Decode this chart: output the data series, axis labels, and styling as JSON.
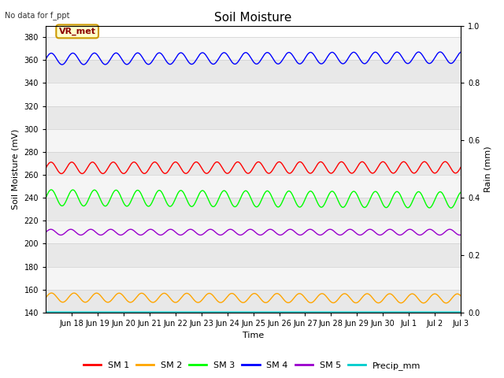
{
  "title": "Soil Moisture",
  "top_left_text": "No data for f_ppt",
  "ylabel_left": "Soil Moisture (mV)",
  "ylabel_right": "Rain (mm)",
  "xlabel": "Time",
  "annotation_text": "VR_met",
  "ylim_left": [
    140,
    390
  ],
  "ylim_right": [
    0.0,
    1.0
  ],
  "xtick_labels": [
    "Jun 18",
    "Jun 19",
    "Jun 20",
    "Jun 21",
    "Jun 22",
    "Jun 23",
    "Jun 24",
    "Jun 25",
    "Jun 26",
    "Jun 27",
    "Jun 28",
    "Jun 29",
    "Jun 30",
    "Jul 1",
    "Jul 2",
    "Jul 3"
  ],
  "ytick_labels_left": [
    140,
    160,
    180,
    200,
    220,
    240,
    260,
    280,
    300,
    320,
    340,
    360,
    380
  ],
  "ytick_labels_right": [
    0.0,
    0.2,
    0.4,
    0.6,
    0.8,
    1.0
  ],
  "series": {
    "SM1": {
      "color": "#ff0000",
      "base": 266,
      "amplitude": 5,
      "freq": 1.25,
      "trend": 0.03,
      "label": "SM 1"
    },
    "SM2": {
      "color": "#ffa500",
      "base": 153,
      "amplitude": 4,
      "freq": 1.15,
      "trend": -0.05,
      "label": "SM 2"
    },
    "SM3": {
      "color": "#00ff00",
      "base": 240,
      "amplitude": 7,
      "freq": 1.2,
      "trend": -0.12,
      "label": "SM 3"
    },
    "SM4": {
      "color": "#0000ff",
      "base": 361,
      "amplitude": 5,
      "freq": 1.2,
      "trend": 0.07,
      "label": "SM 4"
    },
    "SM5": {
      "color": "#9900cc",
      "base": 210,
      "amplitude": 2.5,
      "freq": 1.3,
      "trend": 0.0,
      "label": "SM 5"
    },
    "Precip": {
      "color": "#00cccc",
      "base": 140.5,
      "amplitude": 0,
      "freq": 1.0,
      "trend": 0.0,
      "label": "Precip_mm"
    }
  },
  "fig_bg_color": "#ffffff",
  "plot_bg_color": "#ffffff",
  "band_color_dark": "#e8e8e8",
  "band_color_light": "#f5f5f5",
  "grid_color": "#d0d0d0",
  "annotation_bg": "#ffffcc",
  "annotation_border": "#cc9900",
  "annotation_text_color": "#8b0000",
  "title_fontsize": 11,
  "axis_label_fontsize": 8,
  "tick_fontsize": 7,
  "legend_fontsize": 8
}
